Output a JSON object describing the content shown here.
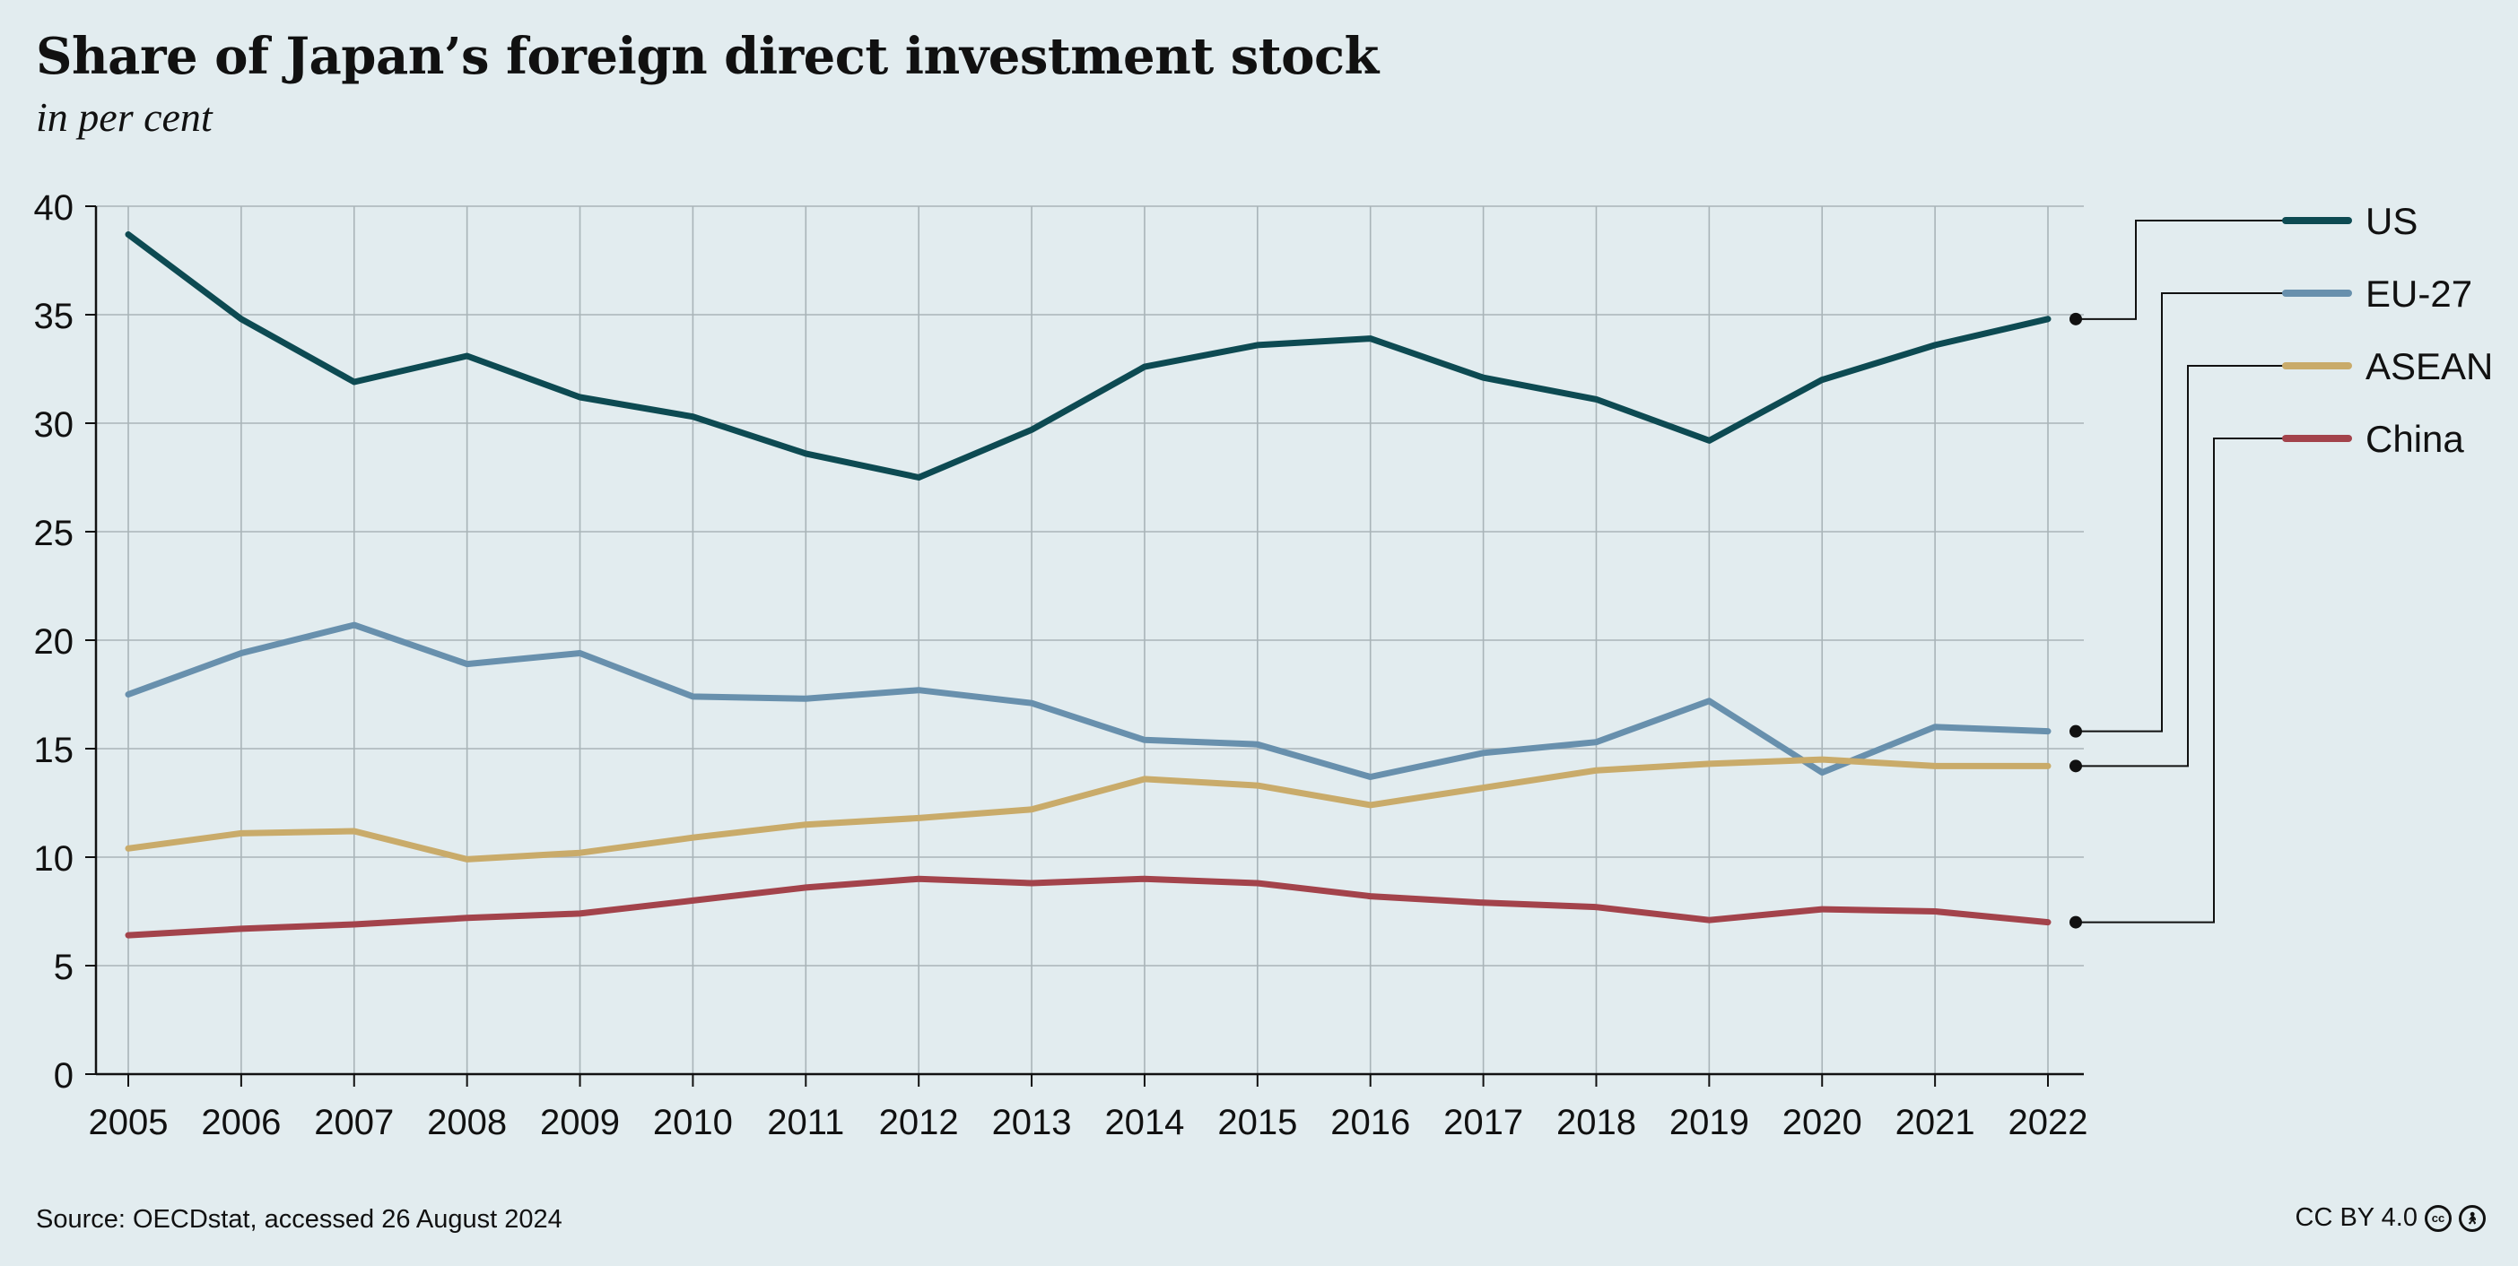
{
  "header": {
    "title": "Share of Japan’s foreign direct investment stock",
    "subtitle": "in per cent"
  },
  "footer": {
    "source": "Source: OECDstat, accessed 26 August 2024",
    "license": "CC BY 4.0",
    "license_icons": [
      "cc-icon",
      "attribution-icon"
    ]
  },
  "chart_data": {
    "type": "line",
    "title": "Share of Japan’s foreign direct investment stock",
    "subtitle": "in per cent",
    "x": [
      2005,
      2006,
      2007,
      2008,
      2009,
      2010,
      2011,
      2012,
      2013,
      2014,
      2015,
      2016,
      2017,
      2018,
      2019,
      2020,
      2021,
      2022
    ],
    "ylim": [
      0,
      40
    ],
    "yticks": [
      0,
      5,
      10,
      15,
      20,
      25,
      30,
      35,
      40
    ],
    "grid": true,
    "legend_position": "right",
    "series": [
      {
        "name": "US",
        "color": "#0d4a52",
        "values": [
          38.7,
          34.8,
          31.9,
          33.1,
          31.2,
          30.3,
          28.6,
          27.5,
          29.7,
          32.6,
          33.6,
          33.9,
          32.1,
          31.1,
          29.2,
          32.0,
          33.6,
          34.8
        ]
      },
      {
        "name": "EU-27",
        "color": "#6890ad",
        "values": [
          17.5,
          19.4,
          20.7,
          18.9,
          19.4,
          17.4,
          17.3,
          17.7,
          17.1,
          15.4,
          15.2,
          13.7,
          14.8,
          15.3,
          17.2,
          13.9,
          16.0,
          15.8
        ]
      },
      {
        "name": "ASEAN",
        "color": "#c9ab6a",
        "values": [
          10.4,
          11.1,
          11.2,
          9.9,
          10.2,
          10.9,
          11.5,
          11.8,
          12.2,
          13.6,
          13.3,
          12.4,
          13.2,
          14.0,
          14.3,
          14.5,
          14.2,
          14.2
        ]
      },
      {
        "name": "China",
        "color": "#a3434b",
        "values": [
          6.4,
          6.7,
          6.9,
          7.2,
          7.4,
          8.0,
          8.6,
          9.0,
          8.8,
          9.0,
          8.8,
          8.2,
          7.9,
          7.7,
          7.1,
          7.6,
          7.5,
          7.0
        ]
      }
    ]
  }
}
